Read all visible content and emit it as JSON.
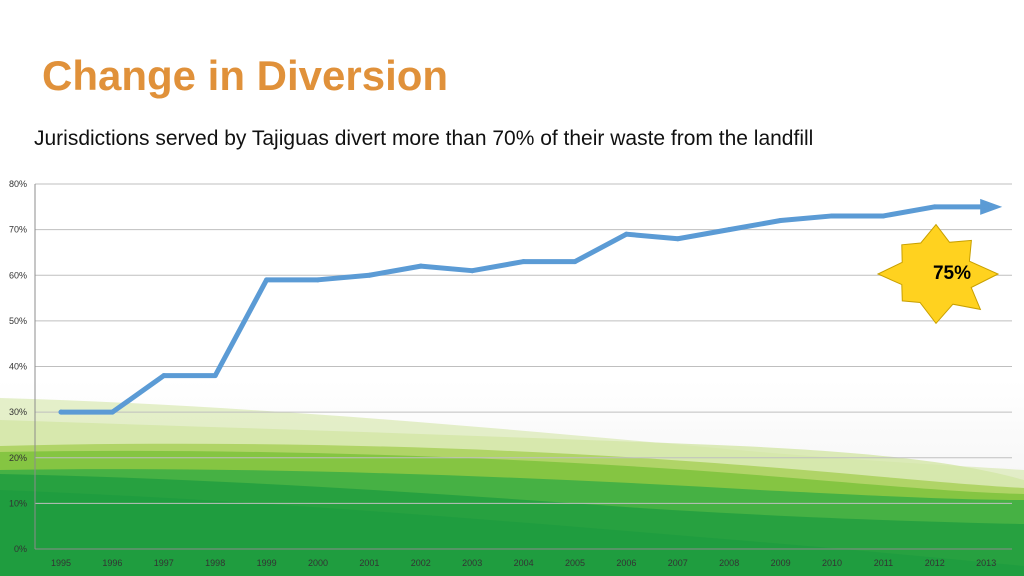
{
  "slide": {
    "title": "Change in Diversion",
    "subtitle": "Jurisdictions served by Tajiguas divert more than 70% of their waste from the landfill"
  },
  "colors": {
    "title": "#e0913a",
    "line": "#5b9bd5",
    "burst_fill": "#ffd21f",
    "burst_stroke": "#c8a000",
    "gridline": "#bfbfbf",
    "background_greens": [
      "#1e9c3f",
      "#3fae45",
      "#7ec23c",
      "#a9d05a",
      "#d3e6a6"
    ]
  },
  "chart_data": {
    "type": "line",
    "x": [
      "1995",
      "1996",
      "1997",
      "1998",
      "1999",
      "2000",
      "2001",
      "2002",
      "2003",
      "2004",
      "2005",
      "2006",
      "2007",
      "2008",
      "2009",
      "2010",
      "2011",
      "2012",
      "2013"
    ],
    "series": [
      {
        "values": [
          30,
          30,
          38,
          38,
          59,
          59,
          60,
          62,
          61,
          63,
          63,
          69,
          68,
          70,
          72,
          73,
          73,
          75,
          75
        ]
      }
    ],
    "y_tick_labels": [
      "0%",
      "10%",
      "20%",
      "30%",
      "40%",
      "50%",
      "60%",
      "70%",
      "80%"
    ],
    "ylim": [
      0,
      80
    ],
    "y_unit": "percent",
    "grid": true,
    "line_ends_with_arrow": true,
    "title": "",
    "xlabel": "",
    "ylabel": "",
    "callout": {
      "text": "75%",
      "shape": "explosion-starburst",
      "placement": "right of line end"
    }
  }
}
